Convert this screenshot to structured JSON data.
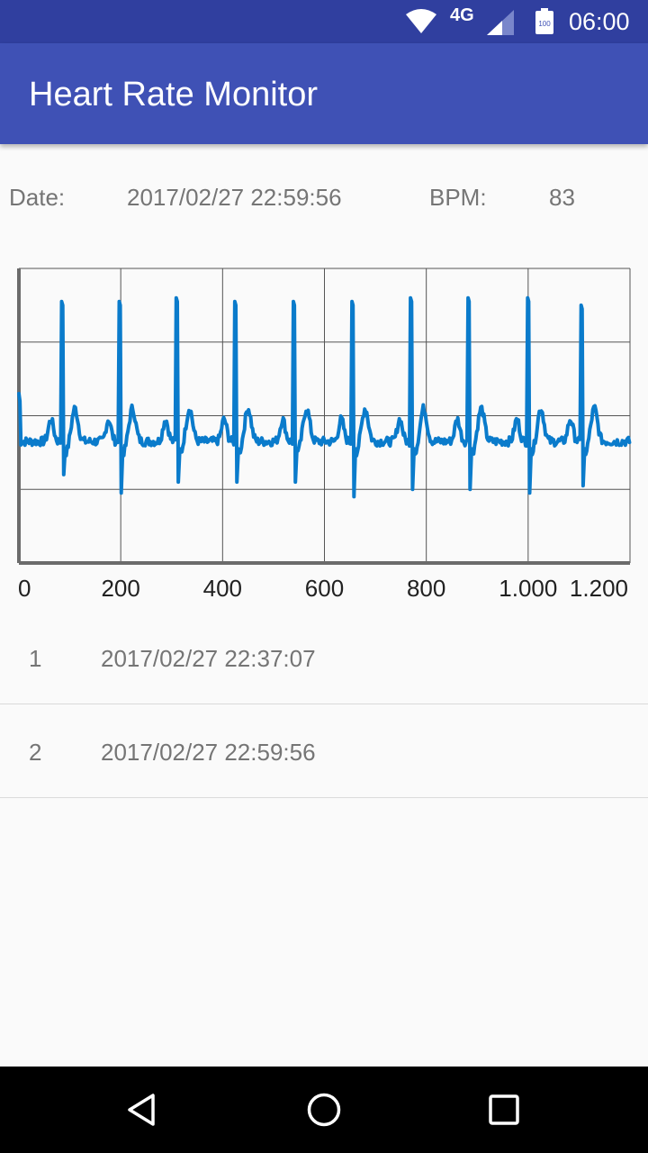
{
  "status_bar": {
    "network": "4G",
    "battery": "100",
    "time": "06:00",
    "icons": [
      "wifi-icon",
      "signal-icon",
      "battery-icon"
    ]
  },
  "app_bar": {
    "title": "Heart Rate Monitor"
  },
  "info": {
    "date_label": "Date:",
    "date_value": "2017/02/27 22:59:56",
    "bpm_label": "BPM:",
    "bpm_value": "83"
  },
  "chart_data": {
    "type": "line",
    "title": "",
    "xlabel": "",
    "ylabel": "",
    "xlim": [
      0,
      1200
    ],
    "ylim": [
      0,
      4
    ],
    "grid": true,
    "x_tick_labels": [
      "0",
      "200",
      "400",
      "600",
      "800",
      "1.000",
      "1.200"
    ],
    "x_ticks": [
      0,
      200,
      400,
      600,
      800,
      1000,
      1200
    ],
    "color": "#0A7BCB",
    "baseline": 1.65,
    "beats": [
      {
        "x": 85,
        "peak": 3.55,
        "trough": 1.2
      },
      {
        "x": 198,
        "peak": 3.55,
        "trough": 0.95
      },
      {
        "x": 310,
        "peak": 3.6,
        "trough": 1.1
      },
      {
        "x": 425,
        "peak": 3.55,
        "trough": 1.1
      },
      {
        "x": 540,
        "peak": 3.55,
        "trough": 1.1
      },
      {
        "x": 655,
        "peak": 3.55,
        "trough": 0.9
      },
      {
        "x": 770,
        "peak": 3.6,
        "trough": 1.0
      },
      {
        "x": 883,
        "peak": 3.6,
        "trough": 1.0
      },
      {
        "x": 1000,
        "peak": 3.6,
        "trough": 0.95
      },
      {
        "x": 1105,
        "peak": 3.5,
        "trough": 1.05
      }
    ]
  },
  "list": {
    "items": [
      {
        "index": "1",
        "timestamp": "2017/02/27 22:37:07"
      },
      {
        "index": "2",
        "timestamp": "2017/02/27 22:59:56"
      }
    ]
  },
  "nav_bar": {
    "icons": [
      "back-icon",
      "home-icon",
      "recents-icon"
    ]
  }
}
